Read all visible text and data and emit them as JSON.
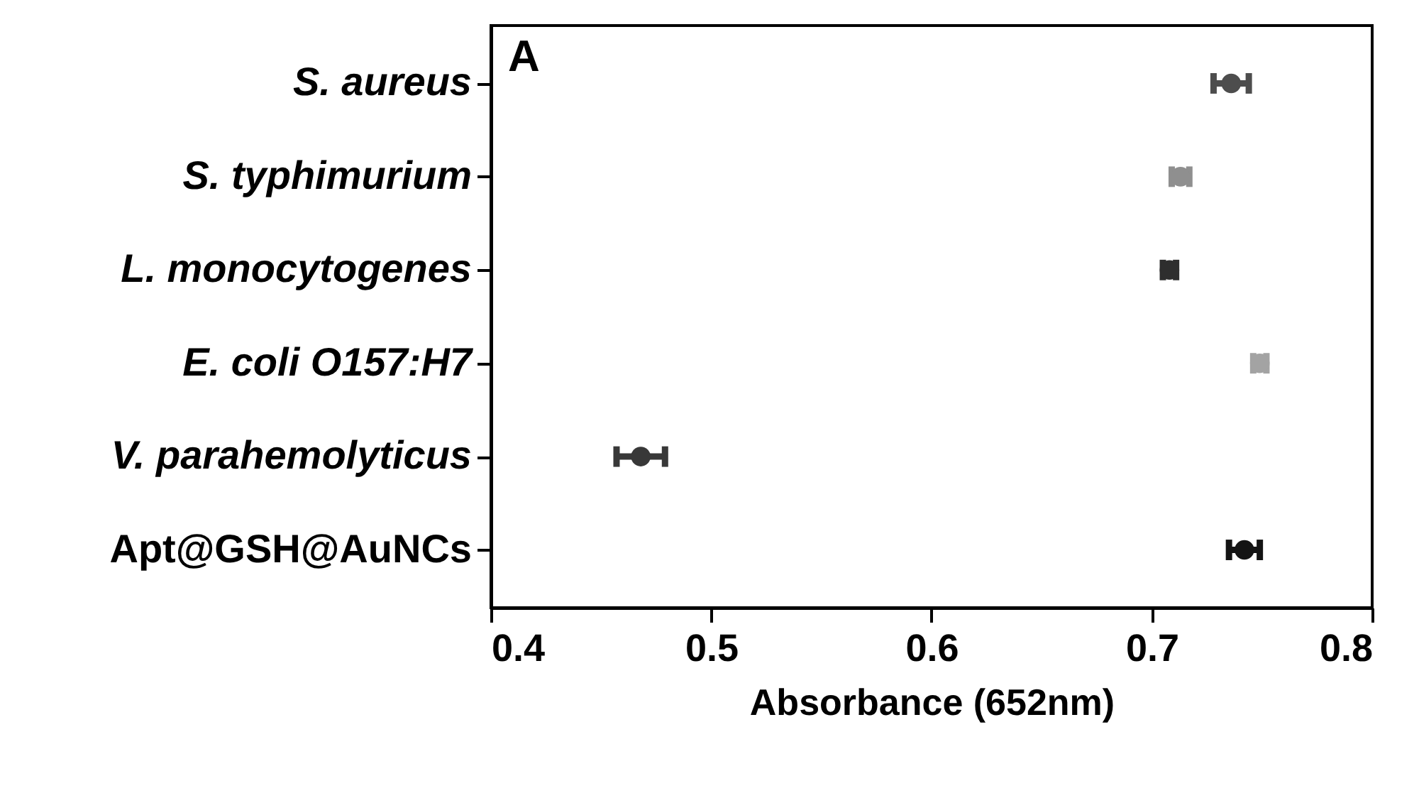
{
  "chart_data": {
    "type": "scatter",
    "orientation": "horizontal",
    "categories": [
      "S. aureus",
      "S. typhimurium",
      "L. monocytogenes",
      "E. coli O157:H7",
      "V. parahemolyticus",
      "Apt@GSH@AuNCs"
    ],
    "values": [
      0.736,
      0.713,
      0.708,
      0.749,
      0.468,
      0.742
    ],
    "errors": [
      0.008,
      0.004,
      0.003,
      0.003,
      0.011,
      0.007
    ],
    "colors": [
      "#4d4d4d",
      "#8f8f8f",
      "#2e2e2e",
      "#a3a3a3",
      "#383838",
      "#141414"
    ],
    "xlabel": "Absorbance (652nm)",
    "xlim": [
      0.4,
      0.8
    ],
    "xticks": [
      0.4,
      0.5,
      0.6,
      0.7,
      0.8
    ],
    "annotations": [
      "A"
    ],
    "marker": "circle",
    "grid": false
  }
}
